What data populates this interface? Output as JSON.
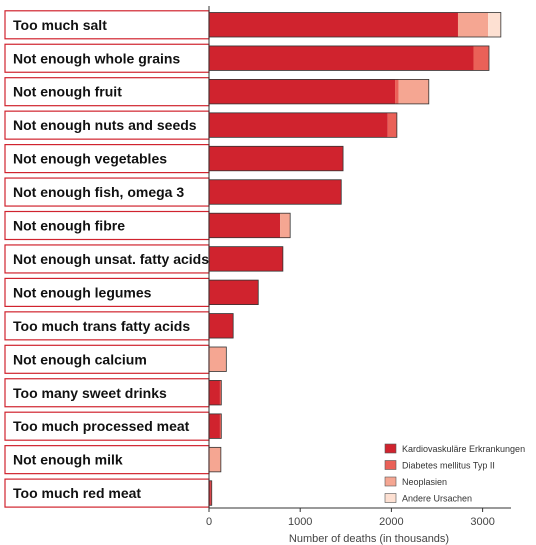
{
  "chart_data": {
    "type": "bar",
    "orientation": "horizontal",
    "stacked": true,
    "categories": [
      "Too much salt",
      "Not enough whole grains",
      "Not enough fruit",
      "Not enough nuts and seeds",
      "Not enough vegetables",
      "Not enough fish, omega 3",
      "Not enough fibre",
      "Not enough unsat. fatty acids",
      "Not enough legumes",
      "Too much trans fatty acids",
      "Not enough calcium",
      "Too many sweet drinks",
      "Too much processed meat",
      "Not enough milk",
      "Too much red meat"
    ],
    "series": [
      {
        "name": "Kardiovaskuläre Erkrankungen",
        "color": "#d0232e",
        "values": [
          2730,
          2900,
          2040,
          1960,
          1470,
          1450,
          780,
          810,
          540,
          265,
          0,
          120,
          120,
          0,
          20
        ]
      },
      {
        "name": "Diabetes mellitus Typ II",
        "color": "#ea6158",
        "values": [
          0,
          170,
          40,
          100,
          0,
          0,
          0,
          0,
          0,
          0,
          0,
          15,
          15,
          0,
          10
        ]
      },
      {
        "name": "Neoplasien",
        "color": "#f5a692",
        "values": [
          330,
          0,
          330,
          0,
          0,
          0,
          110,
          0,
          0,
          0,
          190,
          0,
          0,
          130,
          0
        ]
      },
      {
        "name": "Andere Ursachen",
        "color": "#fde0d2",
        "values": [
          140,
          0,
          0,
          0,
          0,
          0,
          0,
          0,
          0,
          0,
          0,
          0,
          0,
          0,
          0
        ]
      }
    ],
    "xlim": [
      0,
      3300
    ],
    "xticks": [
      0,
      1000,
      2000,
      3000
    ],
    "xlabel": "Number of deaths (in thousands)",
    "legend_position": "bottom-right"
  }
}
